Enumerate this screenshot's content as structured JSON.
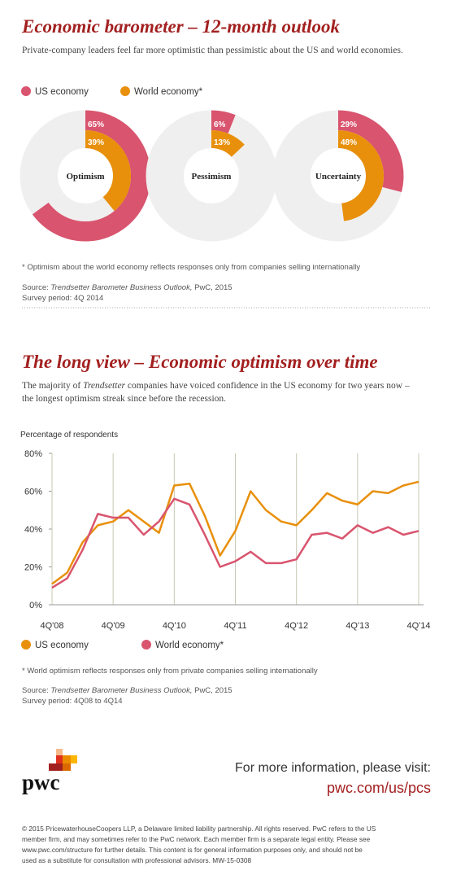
{
  "section1": {
    "title": "Economic barometer – 12-month outlook",
    "subtitle": "Private-company leaders feel far more optimistic than pessimistic about the US and world economies.",
    "footnote": "* Optimism about the world economy reflects responses only from companies selling internationally",
    "source": [
      "Source: ",
      "Trendsetter Barometer Business Outlook,",
      " PwC, 2015"
    ],
    "survey": "Survey period: 4Q 2014"
  },
  "section2": {
    "title": "The long view – Economic optimism over time",
    "subtitle": [
      "The majority of ",
      "Trendsetter",
      " companies have voiced confidence in the US economy for two years now –",
      "the longest optimism streak since before the recession."
    ],
    "footnote": "* World optimism reflects responses only from private companies selling internationally",
    "source": [
      "Source: ",
      "Trendsetter Barometer Business Outlook,",
      " PwC, 2015"
    ],
    "survey": "Survey period: 4Q08 to 4Q14"
  },
  "chart_data": [
    {
      "type": "donut",
      "categories": [
        "Optimism",
        "Pessimism",
        "Uncertainty"
      ],
      "series": [
        {
          "name": "US economy",
          "color": "#d9546e",
          "values": [
            65,
            6,
            29
          ],
          "value_labels": [
            "65%",
            "6%",
            "29%"
          ]
        },
        {
          "name": "World economy*",
          "color": "#e8900c",
          "values": [
            39,
            13,
            48
          ],
          "value_labels": [
            "39%",
            "13%",
            "48%"
          ]
        }
      ]
    },
    {
      "type": "line",
      "ylabel": "Percentage of respondents",
      "categories": [
        "4Q'08",
        null,
        null,
        null,
        "4Q'09",
        null,
        null,
        null,
        "4Q'10",
        null,
        null,
        null,
        "4Q'11",
        null,
        null,
        null,
        "4Q'12",
        null,
        null,
        null,
        "4Q'13",
        null,
        null,
        null,
        "4Q'14"
      ],
      "series": [
        {
          "name": "US economy",
          "color": "#e8900c",
          "values": [
            11,
            17,
            33,
            42,
            44,
            50,
            44,
            38,
            63,
            64,
            47,
            26,
            39,
            60,
            50,
            44,
            42,
            50,
            59,
            55,
            53,
            60,
            59,
            63,
            65
          ]
        },
        {
          "name": "World economy*",
          "color": "#d9546e",
          "values": [
            9,
            14,
            29,
            48,
            46,
            46,
            37,
            44,
            56,
            53,
            37,
            20,
            23,
            28,
            22,
            22,
            24,
            37,
            38,
            35,
            42,
            38,
            41,
            37,
            39
          ]
        }
      ],
      "ylim": [
        0,
        80
      ],
      "yticks": [
        {
          "value": 0,
          "label": "0%"
        },
        {
          "value": 20,
          "label": "20%"
        },
        {
          "value": 40,
          "label": "40%"
        },
        {
          "value": 60,
          "label": "60%"
        },
        {
          "value": 80,
          "label": "80%"
        }
      ]
    }
  ],
  "footer": {
    "logo": "pwc",
    "info": "For more information, please visit:",
    "url": "pwc.com/us/pcs",
    "copyright": [
      "© 2015 PricewaterhouseCoopers LLP, a Delaware limited liability partnership. All rights reserved. PwC refers to the US",
      "member firm, and may sometimes refer to the PwC network. Each member firm is a separate legal entity. Please see",
      "www.pwc.com/structure for further details. This content is for general information purposes only, and should not be",
      "used as a substitute for consultation with professional advisors. MW-15-0308"
    ]
  }
}
